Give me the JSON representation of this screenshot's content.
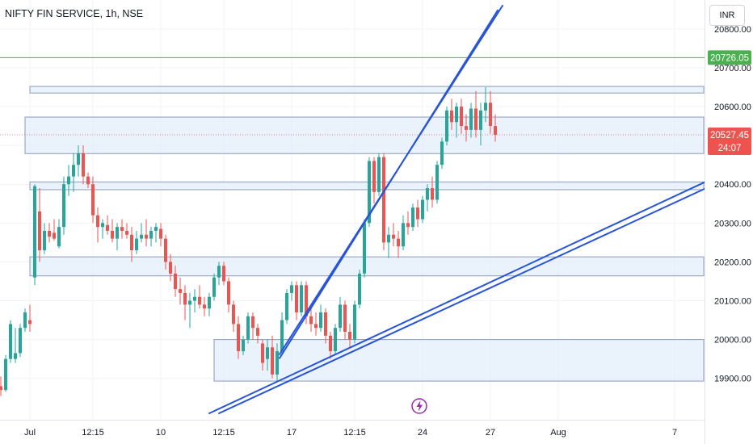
{
  "header": {
    "symbol_title": "NIFTY FIN SERVICE, 1h, NSE",
    "currency": "INR"
  },
  "colors": {
    "up": "#26a69a",
    "down": "#ef5350",
    "zone_fill": "#e3edfb",
    "zone_stroke": "#8a9bb8",
    "trendline": "#2855d6",
    "green_line": "#4caf50",
    "grid": "#f0f3fa",
    "lightning": "#9c27b0"
  },
  "chart_data": {
    "type": "candlestick",
    "ylim": [
      19810,
      20860
    ],
    "y_ticks": [
      "19900.00",
      "20000.00",
      "20100.00",
      "20200.00",
      "20300.00",
      "20400.00",
      "20500.00",
      "20600.00",
      "20700.00",
      "20800.00"
    ],
    "y_tick_values": [
      19900,
      20000,
      20100,
      20200,
      20300,
      20400,
      20500,
      20600,
      20700,
      20800
    ],
    "x_ticks": [
      "Jul",
      "12:15",
      "10",
      "12:15",
      "17",
      "12:15",
      "24",
      "27",
      "Aug",
      "7"
    ],
    "x_tick_index": [
      6,
      19,
      33,
      46,
      60,
      73,
      87,
      101,
      115,
      139
    ],
    "price_labels": [
      {
        "text": "20726.05",
        "value": 20726.05,
        "kind": "green"
      },
      {
        "text": "20527.45",
        "value": 20527.45,
        "kind": "last"
      }
    ],
    "countdown": "24:07",
    "zones": [
      {
        "i0": 6,
        "i1": 145,
        "low": 20635,
        "high": 20652
      },
      {
        "i0": 5,
        "i1": 145,
        "low": 20479,
        "high": 20573
      },
      {
        "i0": 6,
        "i1": 145,
        "low": 20386,
        "high": 20406
      },
      {
        "i0": 6,
        "i1": 145,
        "low": 20164,
        "high": 20213
      },
      {
        "i0": 44,
        "i1": 145,
        "low": 19893,
        "high": 20000
      }
    ],
    "trendlines": [
      {
        "i0": 57.5,
        "v0": 19962,
        "i1": 103.5,
        "v1": 20860
      },
      {
        "i0": 57.5,
        "v0": 19952,
        "i1": 102.5,
        "v1": 20848
      },
      {
        "i0": 43,
        "v0": 19810,
        "i1": 146,
        "v1": 20410
      },
      {
        "i0": 45,
        "v0": 19810,
        "i1": 146,
        "v1": 20393
      }
    ],
    "ohlc": [
      [
        19880,
        19905,
        19855,
        19870
      ],
      [
        19870,
        19960,
        19865,
        19950
      ],
      [
        19950,
        20050,
        19940,
        20040
      ],
      [
        19950,
        20030,
        19940,
        19965
      ],
      [
        19965,
        20040,
        19955,
        20030
      ],
      [
        20030,
        20080,
        20020,
        20070
      ],
      [
        20050,
        20090,
        20020,
        20040
      ],
      [
        20160,
        20400,
        20140,
        20395
      ],
      [
        20330,
        20390,
        20200,
        20230
      ],
      [
        20230,
        20300,
        20220,
        20280
      ],
      [
        20280,
        20300,
        20250,
        20265
      ],
      [
        20275,
        20310,
        20255,
        20260
      ],
      [
        20240,
        20310,
        20235,
        20290
      ],
      [
        20290,
        20420,
        20270,
        20400
      ],
      [
        20400,
        20450,
        20370,
        20420
      ],
      [
        20420,
        20480,
        20380,
        20450
      ],
      [
        20450,
        20500,
        20420,
        20480
      ],
      [
        20480,
        20500,
        20400,
        20420
      ],
      [
        20420,
        20430,
        20390,
        20400
      ],
      [
        20400,
        20420,
        20300,
        20320
      ],
      [
        20320,
        20340,
        20250,
        20290
      ],
      [
        20290,
        20310,
        20260,
        20300
      ],
      [
        20295,
        20320,
        20270,
        20280
      ],
      [
        20280,
        20310,
        20250,
        20260
      ],
      [
        20260,
        20300,
        20230,
        20290
      ],
      [
        20290,
        20310,
        20260,
        20280
      ],
      [
        20280,
        20300,
        20260,
        20270
      ],
      [
        20270,
        20290,
        20200,
        20230
      ],
      [
        20230,
        20280,
        20220,
        20260
      ],
      [
        20260,
        20300,
        20250,
        20270
      ],
      [
        20270,
        20310,
        20240,
        20260
      ],
      [
        20260,
        20290,
        20240,
        20280
      ],
      [
        20280,
        20300,
        20250,
        20290
      ],
      [
        20285,
        20300,
        20240,
        20260
      ],
      [
        20260,
        20270,
        20180,
        20200
      ],
      [
        20200,
        20220,
        20150,
        20170
      ],
      [
        20170,
        20190,
        20110,
        20130
      ],
      [
        20130,
        20160,
        20090,
        20120
      ],
      [
        20120,
        20140,
        20050,
        20090
      ],
      [
        20090,
        20120,
        20030,
        20100
      ],
      [
        20100,
        20130,
        20070,
        20110
      ],
      [
        20110,
        20140,
        20080,
        20090
      ],
      [
        20090,
        20110,
        20060,
        20080
      ],
      [
        20080,
        20120,
        20060,
        20110
      ],
      [
        20110,
        20170,
        20100,
        20160
      ],
      [
        20160,
        20200,
        20140,
        20190
      ],
      [
        20190,
        20200,
        20140,
        20150
      ],
      [
        20150,
        20160,
        20070,
        20090
      ],
      [
        20090,
        20100,
        20020,
        20040
      ],
      [
        20040,
        20060,
        19950,
        19970
      ],
      [
        19970,
        20010,
        19960,
        20000
      ],
      [
        20000,
        20070,
        19990,
        20060
      ],
      [
        20060,
        20070,
        20000,
        20030
      ],
      [
        20030,
        20040,
        19990,
        20010
      ],
      [
        19990,
        20000,
        19920,
        19940
      ],
      [
        19950,
        20000,
        19920,
        19980
      ],
      [
        19980,
        20010,
        19900,
        19910
      ],
      [
        19910,
        19990,
        19890,
        19970
      ],
      [
        19970,
        20070,
        19960,
        20050
      ],
      [
        20050,
        20130,
        20040,
        20120
      ],
      [
        20120,
        20150,
        20100,
        20140
      ],
      [
        20140,
        20150,
        20050,
        20070
      ],
      [
        20070,
        20150,
        20060,
        20140
      ],
      [
        20140,
        20150,
        20040,
        20060
      ],
      [
        20060,
        20080,
        20020,
        20040
      ],
      [
        20040,
        20070,
        20010,
        20030
      ],
      [
        20030,
        20090,
        20020,
        20070
      ],
      [
        20070,
        20080,
        19990,
        20010
      ],
      [
        20010,
        20020,
        19950,
        19970
      ],
      [
        19970,
        20040,
        19960,
        20030
      ],
      [
        20030,
        20110,
        20020,
        20090
      ],
      [
        20090,
        20100,
        20000,
        20020
      ],
      [
        20020,
        20040,
        19980,
        20000
      ],
      [
        20000,
        20100,
        19990,
        20090
      ],
      [
        20090,
        20180,
        20080,
        20170
      ],
      [
        20170,
        20310,
        20160,
        20300
      ],
      [
        20300,
        20470,
        20290,
        20460
      ],
      [
        20460,
        20470,
        20350,
        20380
      ],
      [
        20380,
        20480,
        20370,
        20470
      ],
      [
        20470,
        20480,
        20230,
        20250
      ],
      [
        20250,
        20290,
        20210,
        20270
      ],
      [
        20270,
        20300,
        20240,
        20260
      ],
      [
        20260,
        20280,
        20210,
        20240
      ],
      [
        20240,
        20320,
        20230,
        20300
      ],
      [
        20300,
        20330,
        20270,
        20290
      ],
      [
        20290,
        20350,
        20280,
        20340
      ],
      [
        20340,
        20360,
        20290,
        20310
      ],
      [
        20310,
        20370,
        20300,
        20360
      ],
      [
        20360,
        20400,
        20330,
        20390
      ],
      [
        20390,
        20420,
        20340,
        20360
      ],
      [
        20360,
        20460,
        20350,
        20450
      ],
      [
        20450,
        20520,
        20440,
        20510
      ],
      [
        20510,
        20600,
        20500,
        20590
      ],
      [
        20590,
        20620,
        20540,
        20560
      ],
      [
        20560,
        20610,
        20520,
        20600
      ],
      [
        20600,
        20620,
        20530,
        20550
      ],
      [
        20550,
        20580,
        20510,
        20540
      ],
      [
        20540,
        20610,
        20520,
        20595
      ],
      [
        20595,
        20640,
        20520,
        20540
      ],
      [
        20540,
        20610,
        20500,
        20590
      ],
      [
        20590,
        20650,
        20560,
        20610
      ],
      [
        20610,
        20640,
        20530,
        20550
      ],
      [
        20550,
        20580,
        20510,
        20527.45
      ]
    ]
  }
}
